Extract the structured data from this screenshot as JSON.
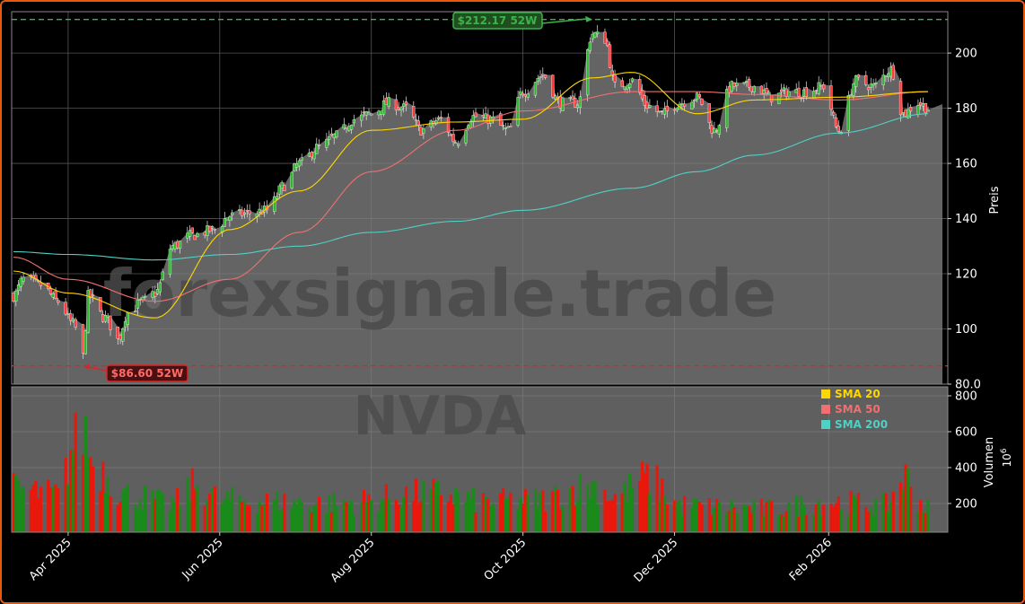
{
  "chart_data": [
    {
      "type": "candlestick",
      "ticker": "NVDA",
      "watermark": "forexsignale.trade",
      "ylabel": "Preis",
      "ylim": [
        80,
        215
      ],
      "yticks": [
        80,
        100,
        120,
        140,
        160,
        180,
        200
      ],
      "ytick_labels": [
        "80.0",
        "100",
        "120",
        "140",
        "160",
        "180",
        "200"
      ],
      "date_range": [
        "2025-03-10",
        "2026-03-13"
      ],
      "xticks": [
        "2025-04-01",
        "2025-06-01",
        "2025-08-01",
        "2025-10-01",
        "2025-12-01",
        "2026-02-01"
      ],
      "xtick_labels": [
        "Apr 2025",
        "Jun 2025",
        "Aug 2025",
        "Oct 2025",
        "Dec 2025",
        "Feb 2026"
      ],
      "close_anchors": [
        [
          "2025-03-10",
          112
        ],
        [
          "2025-03-14",
          118
        ],
        [
          "2025-03-21",
          116
        ],
        [
          "2025-03-28",
          110
        ],
        [
          "2025-04-03",
          102
        ],
        [
          "2025-04-07",
          90
        ],
        [
          "2025-04-09",
          112
        ],
        [
          "2025-04-16",
          104
        ],
        [
          "2025-04-21",
          96
        ],
        [
          "2025-04-25",
          106
        ],
        [
          "2025-05-01",
          110
        ],
        [
          "2025-05-06",
          113
        ],
        [
          "2025-05-13",
          130
        ],
        [
          "2025-05-21",
          134
        ],
        [
          "2025-05-30",
          136
        ],
        [
          "2025-06-05",
          141
        ],
        [
          "2025-06-13",
          142
        ],
        [
          "2025-06-20",
          143
        ],
        [
          "2025-06-27",
          152
        ],
        [
          "2025-07-03",
          160
        ],
        [
          "2025-07-11",
          166
        ],
        [
          "2025-07-18",
          170
        ],
        [
          "2025-07-25",
          176
        ],
        [
          "2025-08-01",
          178
        ],
        [
          "2025-08-08",
          182
        ],
        [
          "2025-08-15",
          180
        ],
        [
          "2025-08-21",
          172
        ],
        [
          "2025-08-29",
          176
        ],
        [
          "2025-09-04",
          168
        ],
        [
          "2025-09-11",
          177
        ],
        [
          "2025-09-18",
          176
        ],
        [
          "2025-09-25",
          172
        ],
        [
          "2025-10-01",
          186
        ],
        [
          "2025-10-09",
          192
        ],
        [
          "2025-10-16",
          182
        ],
        [
          "2025-10-23",
          182
        ],
        [
          "2025-10-29",
          207
        ],
        [
          "2025-11-03",
          205
        ],
        [
          "2025-11-07",
          188
        ],
        [
          "2025-11-14",
          190
        ],
        [
          "2025-11-20",
          181
        ],
        [
          "2025-11-26",
          178
        ],
        [
          "2025-12-03",
          182
        ],
        [
          "2025-12-10",
          184
        ],
        [
          "2025-12-17",
          172
        ],
        [
          "2025-12-24",
          188
        ],
        [
          "2026-01-02",
          188
        ],
        [
          "2026-01-09",
          184
        ],
        [
          "2026-01-16",
          186
        ],
        [
          "2026-01-23",
          186
        ],
        [
          "2026-01-30",
          188
        ],
        [
          "2026-02-05",
          172
        ],
        [
          "2026-02-12",
          190
        ],
        [
          "2026-02-19",
          188
        ],
        [
          "2026-02-26",
          194
        ],
        [
          "2026-03-03",
          178
        ],
        [
          "2026-03-09",
          182
        ],
        [
          "2026-03-13",
          180
        ]
      ],
      "sma20_anchors": [
        [
          "2025-03-10",
          121
        ],
        [
          "2025-04-01",
          113
        ],
        [
          "2025-05-06",
          104
        ],
        [
          "2025-06-05",
          136
        ],
        [
          "2025-07-03",
          150
        ],
        [
          "2025-08-01",
          172
        ],
        [
          "2025-09-04",
          175
        ],
        [
          "2025-10-01",
          176
        ],
        [
          "2025-10-29",
          191
        ],
        [
          "2025-11-14",
          193
        ],
        [
          "2025-12-10",
          178
        ],
        [
          "2026-01-02",
          183
        ],
        [
          "2026-02-05",
          184
        ],
        [
          "2026-03-13",
          186
        ]
      ],
      "sma50_anchors": [
        [
          "2025-03-10",
          126
        ],
        [
          "2025-04-01",
          118
        ],
        [
          "2025-05-06",
          110
        ],
        [
          "2025-06-05",
          118
        ],
        [
          "2025-07-03",
          135
        ],
        [
          "2025-08-01",
          157
        ],
        [
          "2025-09-04",
          172
        ],
        [
          "2025-10-01",
          179
        ],
        [
          "2025-11-14",
          186
        ],
        [
          "2025-12-10",
          186
        ],
        [
          "2026-01-02",
          185
        ],
        [
          "2026-02-05",
          183
        ],
        [
          "2026-03-13",
          186
        ]
      ],
      "sma200_anchors": [
        [
          "2025-03-10",
          128
        ],
        [
          "2025-04-01",
          127
        ],
        [
          "2025-05-06",
          125
        ],
        [
          "2025-06-05",
          127
        ],
        [
          "2025-07-03",
          130
        ],
        [
          "2025-08-01",
          135
        ],
        [
          "2025-09-04",
          139
        ],
        [
          "2025-10-01",
          143
        ],
        [
          "2025-11-14",
          151
        ],
        [
          "2025-12-10",
          157
        ],
        [
          "2026-01-02",
          163
        ],
        [
          "2026-02-05",
          171
        ],
        [
          "2026-03-13",
          178
        ]
      ],
      "high_52w": {
        "label": "$212.17 52W",
        "date": "2025-10-29",
        "value": 212.17,
        "color": "#3cb44b"
      },
      "low_52w": {
        "label": "$86.60 52W",
        "date": "2025-04-07",
        "value": 86.6,
        "color": "#d62728"
      },
      "current_level": 181.5,
      "legend": [
        {
          "label": "SMA 20",
          "color": "#ffd700"
        },
        {
          "label": "SMA 50",
          "color": "#f07070"
        },
        {
          "label": "SMA 200",
          "color": "#4fd1c5"
        }
      ],
      "legend_position": "bottom-right",
      "colors": {
        "up": "#1a8a1a",
        "down": "#e8190c",
        "price_area": "#808080",
        "frame": "#e8590c"
      },
      "grid": true
    },
    {
      "type": "bar",
      "ylabel": "Volumen",
      "unit_label": "10^6",
      "ylim": [
        40,
        850
      ],
      "yticks": [
        200,
        400,
        600,
        800
      ],
      "ytick_labels": [
        "200",
        "400",
        "600",
        "800"
      ],
      "volume_anchors": [
        [
          "2025-03-10",
          280
        ],
        [
          "2025-03-28",
          250
        ],
        [
          "2025-04-04",
          540
        ],
        [
          "2025-04-07",
          620
        ],
        [
          "2025-04-11",
          420
        ],
        [
          "2025-04-25",
          250
        ],
        [
          "2025-05-13",
          200
        ],
        [
          "2025-05-22",
          300
        ],
        [
          "2025-06-02",
          220
        ],
        [
          "2025-06-24",
          210
        ],
        [
          "2025-07-15",
          200
        ],
        [
          "2025-08-28",
          260
        ],
        [
          "2025-09-15",
          210
        ],
        [
          "2025-10-06",
          220
        ],
        [
          "2025-10-29",
          300
        ],
        [
          "2025-11-07",
          240
        ],
        [
          "2025-11-20",
          340
        ],
        [
          "2025-12-04",
          190
        ],
        [
          "2025-12-18",
          180
        ],
        [
          "2026-01-08",
          170
        ],
        [
          "2026-02-02",
          210
        ],
        [
          "2026-02-24",
          190
        ],
        [
          "2026-03-03",
          350
        ],
        [
          "2026-03-13",
          170
        ]
      ],
      "grid": true
    }
  ]
}
